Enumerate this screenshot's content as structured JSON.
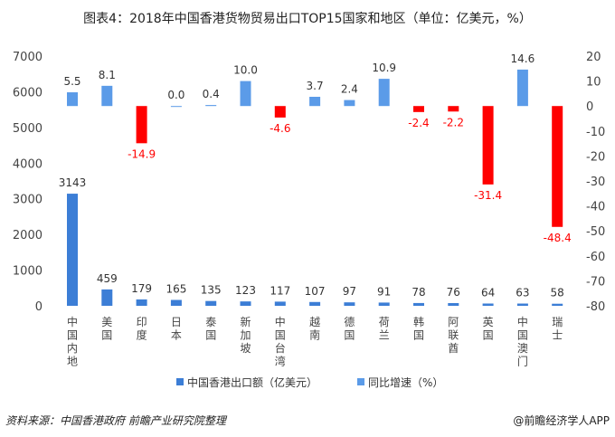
{
  "title": "图表4：2018年中国香港货物贸易出口TOP15国家和地区（单位：亿美元，%）",
  "source": "资料来源：中国香港政府 前瞻产业研究院整理",
  "brand": "@前瞻经济学人APP",
  "chart_data": {
    "type": "bar",
    "categories": [
      "中国内地",
      "美国",
      "印度",
      "日本",
      "泰国",
      "新加坡",
      "中国台湾",
      "越南",
      "德国",
      "荷兰",
      "韩国",
      "阿联酋",
      "英国",
      "中国澳门",
      "瑞士"
    ],
    "series": [
      {
        "name": "中国香港出口额（亿美元）",
        "axis": "left",
        "color": "#3C7ED6",
        "values": [
          3143,
          459,
          179,
          165,
          135,
          123,
          117,
          107,
          97,
          91,
          78,
          76,
          64,
          63,
          58
        ]
      },
      {
        "name": "同比增速（%）",
        "axis": "right",
        "color": "#5B9BE8",
        "negative_color": "#FF0000",
        "values": [
          5.5,
          8.1,
          -14.9,
          0.0,
          0.4,
          10.0,
          -4.6,
          3.7,
          2.4,
          10.9,
          -2.4,
          -2.2,
          -31.4,
          14.6,
          -48.4
        ]
      }
    ],
    "ylim_left": [
      0,
      7000
    ],
    "yticks_left": [
      0,
      1000,
      2000,
      3000,
      4000,
      5000,
      6000,
      7000
    ],
    "ylim_right": [
      -80,
      20
    ],
    "yticks_right": [
      -80,
      -70,
      -60,
      -50,
      -40,
      -30,
      -20,
      -10,
      0,
      10,
      20
    ],
    "grid": false,
    "legend": "bottom"
  }
}
